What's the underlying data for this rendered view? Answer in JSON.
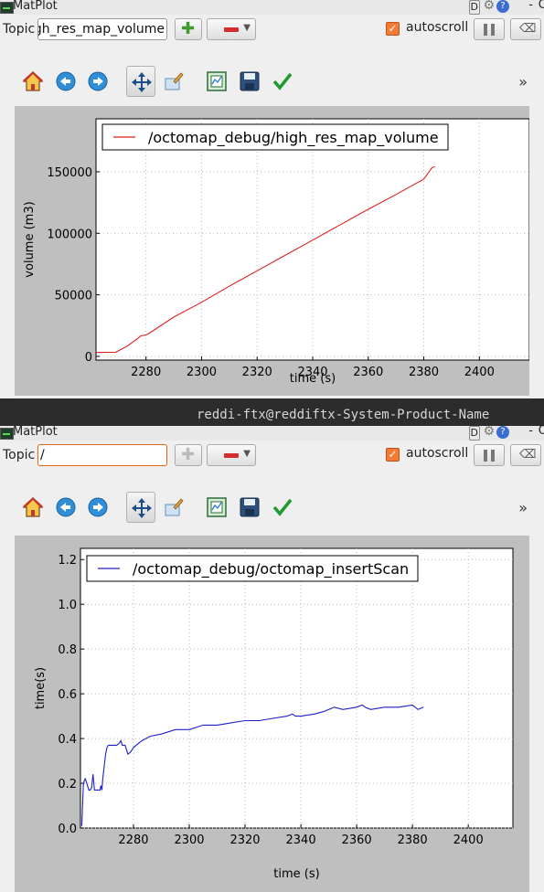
{
  "panels": [
    {
      "window": {
        "title": "MatPlot",
        "d_label": "D",
        "help_label": "?",
        "min_label": "-",
        "close_label": "O"
      },
      "topic": {
        "label": "Topic",
        "value": "gh_res_map_volume",
        "focused": false
      },
      "autoscroll": {
        "label": "autoscroll",
        "checked": true
      },
      "toolbar": [
        "home-icon",
        "back-icon",
        "forward-icon",
        "pan-icon",
        "zoom-icon",
        "subplots-icon",
        "save-icon",
        "apply-icon"
      ],
      "chevron": "»",
      "colors": {
        "line": "#e01f1f"
      },
      "chart_data": {
        "type": "line",
        "xlabel": "time (s)",
        "ylabel": "volume (m3)",
        "xlim": [
          2262,
          2418
        ],
        "ylim": [
          -3000,
          193000
        ],
        "xticks": [
          2280,
          2300,
          2320,
          2340,
          2360,
          2380,
          2400
        ],
        "yticks": [
          0,
          50000,
          100000,
          150000
        ],
        "yticklabels": [
          "0",
          "50000",
          "100000",
          "150000"
        ],
        "grid": true,
        "legend_placement": "upper-left",
        "series": [
          {
            "name": "/octomap_debug/high_res_map_volume",
            "x": [
              2262,
              2263,
              2269,
              2273,
              2277,
              2278,
              2280,
              2281,
              2290,
              2300,
              2310,
              2320,
              2330,
              2340,
              2350,
              2360,
              2370,
              2380,
              2383,
              2384
            ],
            "y": [
              3000,
              3200,
              3300,
              8000,
              14500,
              16500,
              17500,
              18500,
              32000,
              44000,
              57000,
              69500,
              82000,
              94500,
              107000,
              119500,
              131500,
              144000,
              153500,
              154000
            ]
          }
        ]
      }
    },
    {
      "window": {
        "title": "MatPlot",
        "d_label": "D",
        "help_label": "?",
        "min_label": "-",
        "close_label": "O"
      },
      "topic": {
        "label": "Topic",
        "value": "/",
        "focused": true
      },
      "autoscroll": {
        "label": "autoscroll",
        "checked": true
      },
      "toolbar": [
        "home-icon",
        "back-icon",
        "forward-icon",
        "pan-icon",
        "zoom-icon",
        "subplots-icon",
        "save-icon",
        "apply-icon"
      ],
      "chevron": "»",
      "colors": {
        "line": "#1f1fcf"
      },
      "chart_data": {
        "type": "line",
        "xlabel": "time (s)",
        "ylabel": "time(s)",
        "xlim": [
          2261,
          2416
        ],
        "ylim": [
          0,
          1.25
        ],
        "xticks": [
          2280,
          2300,
          2320,
          2340,
          2360,
          2380,
          2400
        ],
        "yticks": [
          0,
          0.2,
          0.4,
          0.6,
          0.8,
          1.0,
          1.2
        ],
        "yticklabels": [
          "0.0",
          "0.2",
          "0.4",
          "0.6",
          "0.8",
          "1.0",
          "1.2"
        ],
        "grid": true,
        "legend_placement": "upper-left",
        "series": [
          {
            "name": "/octomap_debug/octomap_insertScan",
            "x": [
              2261.5,
              2262,
              2262.3,
              2262.7,
              2263,
              2264,
              2264.5,
              2265,
              2265.5,
              2266,
              2267,
              2268,
              2268.3,
              2268.7,
              2269,
              2270,
              2270.5,
              2271,
              2272,
              2273,
              2274,
              2275,
              2275.5,
              2276,
              2277,
              2278,
              2279,
              2280,
              2281,
              2283,
              2286,
              2290,
              2295,
              2300,
              2305,
              2310,
              2315,
              2320,
              2325,
              2330,
              2335,
              2337,
              2338,
              2340,
              2345,
              2348,
              2350,
              2352,
              2355,
              2360,
              2362,
              2363,
              2365,
              2370,
              2375,
              2380,
              2382,
              2384
            ],
            "y": [
              0.01,
              0.19,
              0.21,
              0.22,
              0.21,
              0.17,
              0.17,
              0.18,
              0.24,
              0.17,
              0.17,
              0.17,
              0.19,
              0.17,
              0.22,
              0.33,
              0.36,
              0.37,
              0.37,
              0.37,
              0.37,
              0.38,
              0.39,
              0.37,
              0.37,
              0.33,
              0.34,
              0.36,
              0.37,
              0.39,
              0.41,
              0.42,
              0.44,
              0.44,
              0.46,
              0.46,
              0.47,
              0.48,
              0.48,
              0.49,
              0.5,
              0.51,
              0.5,
              0.5,
              0.51,
              0.52,
              0.53,
              0.54,
              0.53,
              0.54,
              0.55,
              0.54,
              0.53,
              0.54,
              0.54,
              0.55,
              0.53,
              0.54
            ]
          }
        ]
      }
    }
  ],
  "background_terminal": {
    "text": "reddi-ftx@reddiftx-System-Product-Name"
  }
}
